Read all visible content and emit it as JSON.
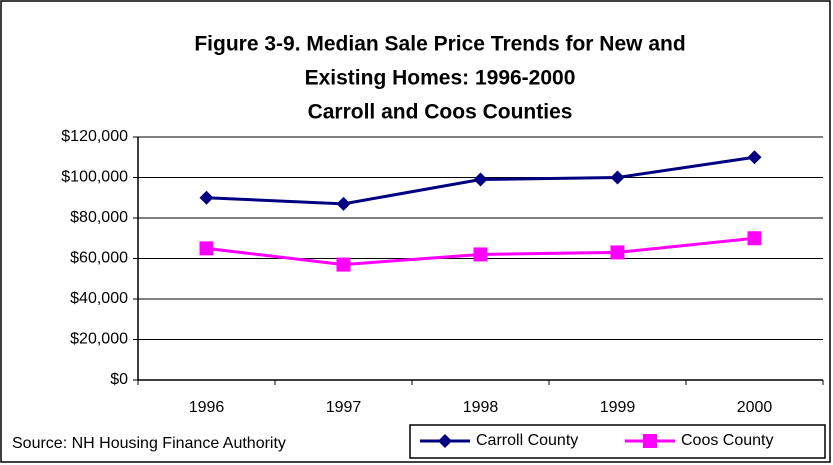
{
  "chart_data": {
    "type": "line",
    "title": [
      "Figure 3-9.  Median Sale Price Trends for New and",
      "Existing Homes: 1996-2000"
    ],
    "subtitle": "Carroll and Coos Counties",
    "categories": [
      "1996",
      "1997",
      "1998",
      "1999",
      "2000"
    ],
    "series": [
      {
        "name": "Carroll County",
        "color": "#000080",
        "marker": "diamond",
        "values": [
          90000,
          87000,
          99000,
          100000,
          110000
        ]
      },
      {
        "name": "Coos County",
        "color": "#ff00ff",
        "marker": "square",
        "values": [
          65000,
          57000,
          62000,
          63000,
          70000
        ]
      }
    ],
    "ylim": [
      0,
      120000
    ],
    "yticks": [
      {
        "value": 0,
        "label": "$0"
      },
      {
        "value": 20000,
        "label": "$20,000"
      },
      {
        "value": 40000,
        "label": "$40,000"
      },
      {
        "value": 60000,
        "label": "$60,000"
      },
      {
        "value": 80000,
        "label": "$80,000"
      },
      {
        "value": 100000,
        "label": "$100,000"
      },
      {
        "value": 120000,
        "label": "$120,000"
      }
    ],
    "grid": true,
    "legend": "bottom-right",
    "source": "Source: NH Housing Finance Authority"
  }
}
